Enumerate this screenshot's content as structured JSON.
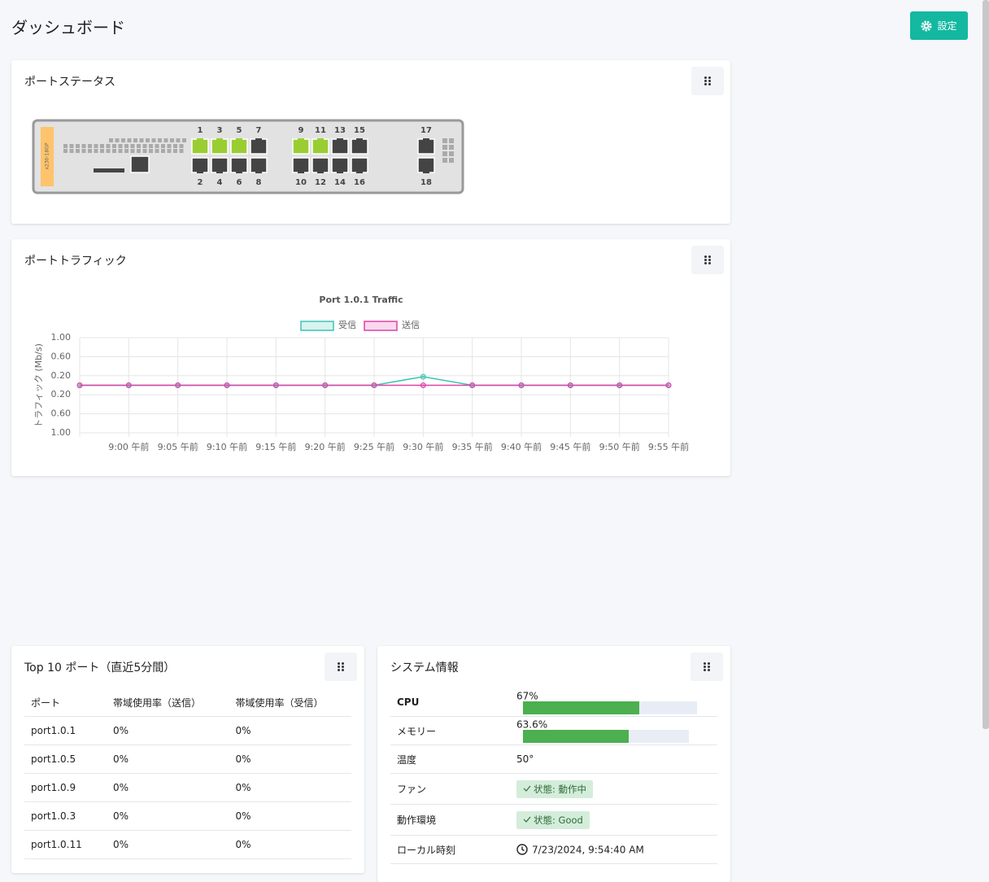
{
  "header": {
    "title": "ダッシュボード",
    "button": "設定"
  },
  "port_status": {
    "title": "ポートステータス",
    "model": "x230-18GP",
    "ports": [
      {
        "label": "1",
        "color": "#9acd32"
      },
      {
        "label": "2",
        "color": "#444444"
      },
      {
        "label": "3",
        "color": "#9acd32"
      },
      {
        "label": "4",
        "color": "#444444"
      },
      {
        "label": "5",
        "color": "#9acd32"
      },
      {
        "label": "6",
        "color": "#444444"
      },
      {
        "label": "7",
        "color": "#444444"
      },
      {
        "label": "8",
        "color": "#444444"
      },
      {
        "label": "9",
        "color": "#9acd32"
      },
      {
        "label": "10",
        "color": "#444444"
      },
      {
        "label": "11",
        "color": "#9acd32"
      },
      {
        "label": "12",
        "color": "#444444"
      },
      {
        "label": "13",
        "color": "#444444"
      },
      {
        "label": "14",
        "color": "#444444"
      },
      {
        "label": "15",
        "color": "#444444"
      },
      {
        "label": "16",
        "color": "#444444"
      },
      {
        "label": "17",
        "color": "#444444"
      },
      {
        "label": "18",
        "color": "#444444"
      }
    ]
  },
  "port_traffic": {
    "title": "ポートトラフィック",
    "chart_data": {
      "type": "line",
      "title": "Port 1.0.1 Traffic",
      "y_label": "トラフィック (Mb/s)",
      "categories": [
        null,
        "9:00 午前",
        "9:05 午前",
        "9:10 午前",
        "9:15 午前",
        "9:20 午前",
        "9:25 午前",
        "9:30 午前",
        "9:35 午前",
        "9:40 午前",
        "9:45 午前",
        "9:50 午前",
        "9:55 午前"
      ],
      "series": [
        {
          "name": "受信",
          "color": "#3cc4b4",
          "values": [
            0,
            0,
            0,
            0,
            0,
            0,
            0,
            0.18,
            0,
            0,
            0,
            0,
            0
          ]
        },
        {
          "name": "送信",
          "color": "#e040a8",
          "values": [
            0,
            0,
            0,
            0,
            0,
            0,
            0,
            0,
            0,
            0,
            0,
            0,
            0
          ]
        }
      ],
      "ylim": [
        -1,
        1
      ],
      "yticks": [
        {
          "value": 1,
          "label": "1.00"
        },
        {
          "value": 0.6,
          "label": "0.60"
        },
        {
          "value": 0.2,
          "label": "0.20"
        },
        {
          "value": -0.2,
          "label": "0.20"
        },
        {
          "value": -0.6,
          "label": "0.60"
        },
        {
          "value": -1,
          "label": "1.00"
        }
      ],
      "grid": true
    }
  },
  "top_ports": {
    "title": "Top 10 ポート（直近5分間）",
    "columns": [
      "ポート",
      "帯域使用率（送信）",
      "帯域使用率（受信）"
    ],
    "rows": [
      [
        "port1.0.1",
        "0%",
        "0%"
      ],
      [
        "port1.0.5",
        "0%",
        "0%"
      ],
      [
        "port1.0.9",
        "0%",
        "0%"
      ],
      [
        "port1.0.3",
        "0%",
        "0%"
      ],
      [
        "port1.0.11",
        "0%",
        "0%"
      ]
    ]
  },
  "system_info": {
    "title": "システム情報",
    "rows": [
      {
        "label": "CPU",
        "value": 67,
        "value_label": "67%"
      },
      {
        "label": "メモリー",
        "value": 63.6,
        "value_label": "63.6%"
      },
      {
        "label": "温度",
        "text": "50°"
      },
      {
        "label": "ファン",
        "badge": "状態: 動作中"
      },
      {
        "label": "動作環境",
        "badge": "状態: Good"
      },
      {
        "label": "ローカル時刻",
        "time": "7/23/2024, 9:54:40 AM"
      }
    ]
  }
}
